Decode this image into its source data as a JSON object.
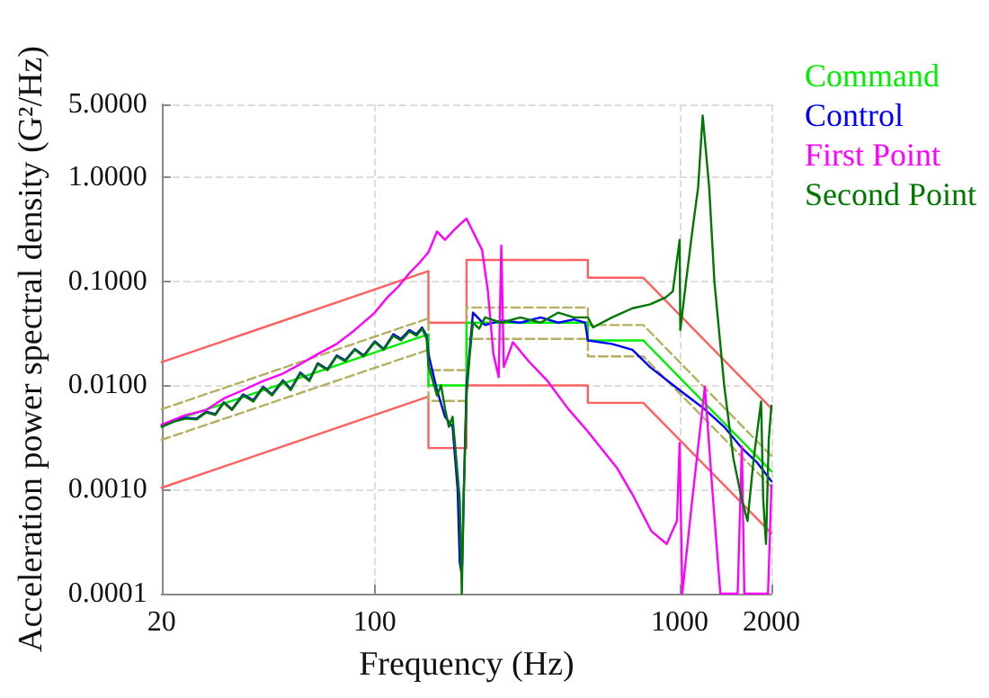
{
  "chart_data": {
    "type": "line",
    "xlabel": "Frequency (Hz)",
    "ylabel": "Acceleration power spectral density (G²/Hz)",
    "log": "xy",
    "grid": true,
    "legend": "right",
    "marker": "none",
    "xlim": [
      20,
      2000
    ],
    "xticks": [
      20,
      100,
      1000,
      2000
    ],
    "ylim": [
      0.0001,
      5
    ],
    "yticks": [
      {
        "value": 0.0001,
        "label": "0.0001"
      },
      {
        "value": 0.001,
        "label": "0.0010"
      },
      {
        "value": 0.01,
        "label": "0.0100"
      },
      {
        "value": 0.1,
        "label": "0.1000"
      },
      {
        "value": 1,
        "label": "1.0000"
      },
      {
        "value": 5,
        "label": "5.0000"
      }
    ],
    "series": [
      {
        "color": "#ff6060",
        "line_style": "solid",
        "x": [
          20,
          150,
          150,
          200,
          200,
          500,
          500,
          760,
          2000
        ],
        "values": [
          0.0167,
          0.125,
          0.04,
          0.04,
          0.16,
          0.16,
          0.108,
          0.108,
          0.006
        ]
      },
      {
        "color": "#ff6060",
        "line_style": "solid",
        "x": [
          20,
          150,
          150,
          200,
          200,
          500,
          500,
          760,
          2000
        ],
        "values": [
          0.00104,
          0.0078,
          0.0025,
          0.0025,
          0.01,
          0.01,
          0.0068,
          0.0068,
          0.00038
        ]
      },
      {
        "color": "#b5b060",
        "line_style": "dashed",
        "x": [
          20,
          150,
          150,
          200,
          200,
          500,
          500,
          760,
          2000
        ],
        "values": [
          0.0059,
          0.044,
          0.014,
          0.014,
          0.056,
          0.056,
          0.038,
          0.038,
          0.0021
        ]
      },
      {
        "color": "#b5b060",
        "line_style": "dashed",
        "x": [
          20,
          150,
          150,
          200,
          200,
          500,
          500,
          760,
          2000
        ],
        "values": [
          0.003,
          0.022,
          0.0071,
          0.0071,
          0.028,
          0.028,
          0.019,
          0.019,
          0.00106
        ]
      },
      {
        "name": "Command",
        "color": "#00ee00",
        "line_style": "solid",
        "x": [
          20,
          150,
          150,
          200,
          200,
          500,
          500,
          760,
          2000
        ],
        "values": [
          0.0042,
          0.031,
          0.01,
          0.01,
          0.04,
          0.04,
          0.027,
          0.027,
          0.0015
        ]
      },
      {
        "name": "Control",
        "color": "#0000ff",
        "line_style": "solid",
        "x": [
          20,
          22,
          24,
          26,
          28,
          30,
          32,
          34,
          37,
          40,
          43,
          46,
          50,
          53,
          57,
          61,
          65,
          70,
          75,
          80,
          86,
          92,
          100,
          107,
          115,
          122,
          130,
          137,
          143,
          148,
          150,
          160,
          170,
          180,
          187,
          190,
          193,
          196,
          200,
          210,
          230,
          260,
          300,
          350,
          400,
          450,
          490,
          500,
          600,
          700,
          800,
          1000,
          1200,
          1400,
          1600,
          1800,
          2000
        ],
        "values": [
          0.0041,
          0.0046,
          0.0049,
          0.0048,
          0.0056,
          0.0053,
          0.0069,
          0.0059,
          0.0082,
          0.0072,
          0.0097,
          0.0082,
          0.0112,
          0.0092,
          0.0133,
          0.0112,
          0.0163,
          0.0143,
          0.0194,
          0.0174,
          0.0224,
          0.0194,
          0.0265,
          0.0224,
          0.031,
          0.028,
          0.034,
          0.031,
          0.036,
          0.03,
          0.02,
          0.009,
          0.005,
          0.004,
          0.001,
          0.0002,
          0.00015,
          0.001,
          0.01,
          0.05,
          0.038,
          0.042,
          0.04,
          0.045,
          0.04,
          0.043,
          0.04,
          0.027,
          0.025,
          0.022,
          0.015,
          0.009,
          0.006,
          0.004,
          0.0025,
          0.0018,
          0.0012
        ]
      },
      {
        "name": "First Point",
        "color": "#ff00ff",
        "line_style": "solid",
        "x": [
          20,
          24,
          28,
          32,
          37,
          43,
          50,
          57,
          65,
          75,
          86,
          100,
          110,
          120,
          130,
          140,
          150,
          160,
          170,
          180,
          190,
          200,
          215,
          225,
          235,
          245,
          255,
          260,
          265,
          284,
          320,
          369,
          430,
          500,
          624,
          700,
          807,
          907,
          980,
          1000,
          1020,
          1100,
          1210,
          1280,
          1360,
          1550,
          1600,
          1630,
          1950,
          2000
        ],
        "values": [
          0.0042,
          0.0052,
          0.0058,
          0.0075,
          0.009,
          0.011,
          0.013,
          0.016,
          0.02,
          0.025,
          0.034,
          0.05,
          0.07,
          0.09,
          0.12,
          0.15,
          0.19,
          0.3,
          0.25,
          0.3,
          0.35,
          0.4,
          0.26,
          0.2,
          0.08,
          0.02,
          0.012,
          0.22,
          0.015,
          0.026,
          0.017,
          0.011,
          0.006,
          0.0036,
          0.0016,
          0.0009,
          0.0004,
          0.0003,
          0.0005,
          0.0028,
          0.0001,
          0.0008,
          0.0097,
          0.001,
          0.0001,
          0.0001,
          0.0026,
          0.0001,
          0.0001,
          0.0011
        ]
      },
      {
        "name": "Second Point",
        "color": "#007700",
        "line_style": "solid",
        "x": [
          20,
          22,
          24,
          26,
          28,
          30,
          32,
          34,
          37,
          40,
          43,
          46,
          50,
          53,
          57,
          61,
          65,
          70,
          75,
          80,
          86,
          92,
          100,
          107,
          115,
          122,
          130,
          137,
          143,
          148,
          150,
          160,
          165,
          170,
          175,
          180,
          185,
          190,
          193,
          196,
          200,
          205,
          210,
          220,
          230,
          260,
          300,
          350,
          400,
          450,
          500,
          520,
          600,
          700,
          800,
          900,
          950,
          1000,
          1005,
          1050,
          1100,
          1150,
          1190,
          1250,
          1300,
          1400,
          1500,
          1600,
          1670,
          1750,
          1850,
          1880,
          1920,
          1960,
          2000
        ],
        "values": [
          0.004,
          0.0045,
          0.0048,
          0.0047,
          0.0055,
          0.0052,
          0.0068,
          0.0058,
          0.008,
          0.007,
          0.0095,
          0.008,
          0.011,
          0.009,
          0.013,
          0.011,
          0.016,
          0.014,
          0.019,
          0.017,
          0.022,
          0.019,
          0.026,
          0.022,
          0.03,
          0.027,
          0.033,
          0.03,
          0.035,
          0.028,
          0.0155,
          0.008,
          0.01,
          0.006,
          0.004,
          0.005,
          0.002,
          0.0008,
          0.0001,
          0.001,
          0.008,
          0.02,
          0.04,
          0.035,
          0.045,
          0.04,
          0.045,
          0.04,
          0.05,
          0.045,
          0.045,
          0.036,
          0.045,
          0.055,
          0.06,
          0.07,
          0.08,
          0.25,
          0.034,
          0.1,
          0.3,
          0.8,
          3.9,
          0.8,
          0.1,
          0.01,
          0.002,
          0.0008,
          0.0005,
          0.002,
          0.007,
          0.0008,
          0.0003,
          0.003,
          0.0064
        ]
      }
    ]
  }
}
